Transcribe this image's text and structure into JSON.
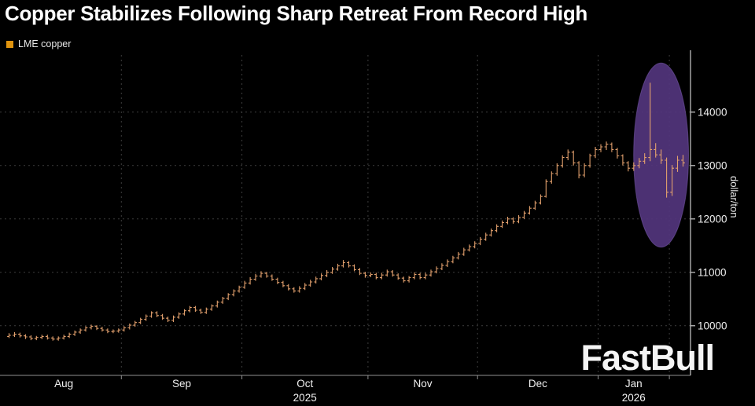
{
  "watermark": "FastBull",
  "chart_data": {
    "type": "ohlc",
    "title": "Copper Stabilizes Following Sharp Retreat From Record High",
    "legend": "LME copper",
    "ylabel": "dollar/ton",
    "xlabel": "",
    "yticks": [
      10000,
      11000,
      12000,
      13000,
      14000
    ],
    "ylim": [
      9070,
      15070
    ],
    "grid": "dashed",
    "legend_position": "top-left",
    "months": [
      {
        "label": "Aug",
        "bars": 21
      },
      {
        "label": "Sep",
        "bars": 22
      },
      {
        "label": "Oct",
        "bars": 23,
        "year": "2025"
      },
      {
        "label": "Nov",
        "bars": 20
      },
      {
        "label": "Dec",
        "bars": 22
      },
      {
        "label": "Jan",
        "bars": 13,
        "year": "2026"
      },
      {
        "label": "",
        "bars": 3
      }
    ],
    "highlight": {
      "bar_from": 115,
      "bar_to": 123,
      "price_from": 11470,
      "price_to": 14920
    },
    "colors": {
      "background": "#000000",
      "bar": "#e2a06d",
      "legend_swatch": "#e0940e",
      "grid": "#3d3d3d",
      "axis": "#cccccc",
      "text": "#f0f0f0",
      "highlight_fill": "#53357d",
      "highlight_stroke": "#7b5cb0"
    },
    "bars": [
      [
        9800,
        9860,
        9770,
        9820
      ],
      [
        9820,
        9880,
        9790,
        9840
      ],
      [
        9840,
        9870,
        9780,
        9810
      ],
      [
        9810,
        9840,
        9750,
        9790
      ],
      [
        9790,
        9820,
        9730,
        9760
      ],
      [
        9760,
        9810,
        9730,
        9780
      ],
      [
        9780,
        9830,
        9750,
        9800
      ],
      [
        9800,
        9830,
        9740,
        9770
      ],
      [
        9770,
        9800,
        9720,
        9750
      ],
      [
        9750,
        9800,
        9720,
        9770
      ],
      [
        9770,
        9830,
        9740,
        9800
      ],
      [
        9800,
        9870,
        9770,
        9840
      ],
      [
        9840,
        9910,
        9810,
        9880
      ],
      [
        9880,
        9950,
        9850,
        9920
      ],
      [
        9920,
        9990,
        9890,
        9960
      ],
      [
        9960,
        10020,
        9930,
        9990
      ],
      [
        9990,
        10010,
        9920,
        9950
      ],
      [
        9950,
        9980,
        9890,
        9920
      ],
      [
        9920,
        9950,
        9860,
        9890
      ],
      [
        9890,
        9930,
        9860,
        9900
      ],
      [
        9900,
        9950,
        9870,
        9920
      ],
      [
        9920,
        9990,
        9890,
        9960
      ],
      [
        9960,
        10040,
        9930,
        10010
      ],
      [
        10010,
        10090,
        9980,
        10060
      ],
      [
        10060,
        10150,
        10030,
        10120
      ],
      [
        10120,
        10210,
        10090,
        10180
      ],
      [
        10180,
        10270,
        10150,
        10240
      ],
      [
        10240,
        10270,
        10160,
        10190
      ],
      [
        10190,
        10220,
        10110,
        10140
      ],
      [
        10140,
        10170,
        10070,
        10100
      ],
      [
        10100,
        10190,
        10070,
        10160
      ],
      [
        10160,
        10250,
        10130,
        10220
      ],
      [
        10220,
        10310,
        10190,
        10280
      ],
      [
        10280,
        10370,
        10250,
        10340
      ],
      [
        10340,
        10370,
        10260,
        10290
      ],
      [
        10290,
        10320,
        10220,
        10250
      ],
      [
        10250,
        10340,
        10220,
        10310
      ],
      [
        10310,
        10400,
        10280,
        10370
      ],
      [
        10370,
        10470,
        10340,
        10440
      ],
      [
        10440,
        10540,
        10410,
        10510
      ],
      [
        10510,
        10610,
        10480,
        10580
      ],
      [
        10580,
        10680,
        10550,
        10650
      ],
      [
        10650,
        10750,
        10620,
        10720
      ],
      [
        10720,
        10840,
        10690,
        10800
      ],
      [
        10800,
        10910,
        10770,
        10870
      ],
      [
        10870,
        10970,
        10840,
        10930
      ],
      [
        10930,
        11020,
        10900,
        10980
      ],
      [
        10980,
        11010,
        10900,
        10930
      ],
      [
        10930,
        10960,
        10840,
        10870
      ],
      [
        10870,
        10900,
        10780,
        10810
      ],
      [
        10810,
        10840,
        10720,
        10750
      ],
      [
        10750,
        10780,
        10660,
        10690
      ],
      [
        10690,
        10720,
        10620,
        10650
      ],
      [
        10650,
        10740,
        10620,
        10700
      ],
      [
        10700,
        10800,
        10670,
        10760
      ],
      [
        10760,
        10860,
        10730,
        10820
      ],
      [
        10820,
        10920,
        10790,
        10880
      ],
      [
        10880,
        10980,
        10850,
        10940
      ],
      [
        10940,
        11040,
        10910,
        11000
      ],
      [
        11000,
        11100,
        10970,
        11060
      ],
      [
        11060,
        11160,
        11030,
        11120
      ],
      [
        11120,
        11230,
        11090,
        11180
      ],
      [
        11180,
        11210,
        11090,
        11120
      ],
      [
        11120,
        11150,
        11020,
        11050
      ],
      [
        11050,
        11080,
        10950,
        10980
      ],
      [
        10980,
        11010,
        10900,
        10940
      ],
      [
        10940,
        11000,
        10910,
        10960
      ],
      [
        10960,
        10990,
        10870,
        10900
      ],
      [
        10900,
        10990,
        10870,
        10950
      ],
      [
        10950,
        11050,
        10920,
        11010
      ],
      [
        11010,
        11040,
        10920,
        10950
      ],
      [
        10950,
        10980,
        10860,
        10890
      ],
      [
        10890,
        10920,
        10810,
        10840
      ],
      [
        10840,
        10930,
        10810,
        10900
      ],
      [
        10900,
        11000,
        10870,
        10960
      ],
      [
        10960,
        10990,
        10870,
        10900
      ],
      [
        10900,
        10990,
        10870,
        10950
      ],
      [
        10950,
        11050,
        10920,
        11010
      ],
      [
        11010,
        11110,
        10980,
        11070
      ],
      [
        11070,
        11170,
        11040,
        11130
      ],
      [
        11130,
        11240,
        11100,
        11200
      ],
      [
        11200,
        11310,
        11170,
        11270
      ],
      [
        11270,
        11380,
        11240,
        11340
      ],
      [
        11340,
        11460,
        11310,
        11420
      ],
      [
        11420,
        11520,
        11390,
        11480
      ],
      [
        11480,
        11580,
        11450,
        11540
      ],
      [
        11540,
        11660,
        11510,
        11620
      ],
      [
        11620,
        11740,
        11590,
        11700
      ],
      [
        11700,
        11820,
        11670,
        11780
      ],
      [
        11780,
        11900,
        11750,
        11860
      ],
      [
        11860,
        11970,
        11830,
        11930
      ],
      [
        11930,
        12040,
        11900,
        12000
      ],
      [
        12000,
        12030,
        11910,
        11950
      ],
      [
        11950,
        12070,
        11920,
        12030
      ],
      [
        12030,
        12150,
        12000,
        12110
      ],
      [
        12110,
        12240,
        12080,
        12200
      ],
      [
        12200,
        12340,
        12170,
        12300
      ],
      [
        12300,
        12460,
        12270,
        12420
      ],
      [
        12420,
        12740,
        12400,
        12700
      ],
      [
        12700,
        12890,
        12660,
        12850
      ],
      [
        12850,
        13040,
        12810,
        13000
      ],
      [
        13000,
        13190,
        12960,
        13150
      ],
      [
        13150,
        13300,
        13100,
        13250
      ],
      [
        13250,
        13280,
        13000,
        13050
      ],
      [
        13050,
        13080,
        12760,
        12820
      ],
      [
        12820,
        13040,
        12780,
        13000
      ],
      [
        13000,
        13220,
        12960,
        13180
      ],
      [
        13180,
        13350,
        13140,
        13300
      ],
      [
        13300,
        13400,
        13250,
        13350
      ],
      [
        13350,
        13450,
        13290,
        13400
      ],
      [
        13400,
        13430,
        13250,
        13300
      ],
      [
        13300,
        13330,
        13130,
        13180
      ],
      [
        13180,
        13210,
        13000,
        13050
      ],
      [
        13050,
        13080,
        12890,
        12950
      ],
      [
        12950,
        13060,
        12900,
        13000
      ],
      [
        13000,
        13140,
        12950,
        13080
      ],
      [
        13080,
        13230,
        13030,
        13150
      ],
      [
        13150,
        14550,
        13080,
        13300
      ],
      [
        13300,
        13420,
        13150,
        13200
      ],
      [
        13200,
        13300,
        13030,
        13100
      ],
      [
        13100,
        13150,
        12400,
        12500
      ],
      [
        12500,
        13010,
        12430,
        12950
      ],
      [
        12950,
        13180,
        12880,
        13100
      ],
      [
        13100,
        13200,
        12980,
        13050
      ]
    ]
  }
}
